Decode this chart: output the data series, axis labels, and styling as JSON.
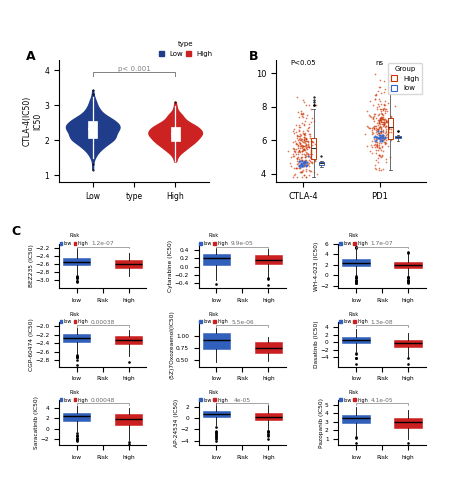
{
  "panel_A": {
    "legend_title": "type",
    "ylabel": "CTLA-4(IC50)\nIC50",
    "pvalue": "p< 0.001",
    "blue_color": "#1f3d8a",
    "red_color": "#cc2222",
    "ylim": [
      0.8,
      4.3
    ]
  },
  "panel_B": {
    "pvalue_ctla4": "P<0.05",
    "pvalue_pd1": "ns",
    "legend_title": "Group",
    "red_color": "#cc3300",
    "blue_color": "#3366cc",
    "ylim": [
      3.5,
      10.8
    ],
    "yticks": [
      4,
      6,
      8,
      10
    ]
  },
  "panel_C": {
    "boxes": [
      {
        "drug": "BEZ235 (IC50)",
        "pvalue": "1.2e-07",
        "low": {
          "median": -2.55,
          "q1": -2.65,
          "q3": -2.47,
          "wl": -3.1,
          "wh": -2.25,
          "out": [
            -3.3
          ]
        },
        "high": {
          "median": -2.6,
          "q1": -2.72,
          "q3": -2.52,
          "wl": -2.8,
          "wh": -2.35,
          "out": [
            -2.9
          ]
        },
        "ylim": [
          -3.2,
          -2.1
        ],
        "yticks": [
          -3.0,
          -2.8,
          -2.6,
          -2.4,
          -2.2
        ]
      },
      {
        "drug": "Cytarabine (IC50)",
        "pvalue": "9.9e-05",
        "low": {
          "median": 0.2,
          "q1": 0.08,
          "q3": 0.3,
          "wl": -0.32,
          "wh": 0.45,
          "out": [
            -0.42
          ]
        },
        "high": {
          "median": 0.17,
          "q1": 0.05,
          "q3": 0.25,
          "wl": -0.35,
          "wh": 0.38,
          "out": [
            -0.43
          ]
        },
        "ylim": [
          -0.52,
          0.55
        ],
        "yticks": [
          -0.4,
          -0.2,
          0.0,
          0.2,
          0.4
        ]
      },
      {
        "drug": "WH-4-023 (IC50)",
        "pvalue": "1.7e-07",
        "low": {
          "median": 2.4,
          "q1": 2.0,
          "q3": 2.9,
          "wl": -1.8,
          "wh": 5.2,
          "out": [
            -0.2,
            0.2
          ]
        },
        "high": {
          "median": 1.9,
          "q1": 1.4,
          "q3": 2.5,
          "wl": -1.5,
          "wh": 4.5,
          "out": []
        },
        "ylim": [
          -2.5,
          6.0
        ],
        "yticks": [
          -2,
          0,
          2,
          4,
          6
        ]
      },
      {
        "drug": "CGP-60474 (IC50)",
        "pvalue": "0.00038",
        "low": {
          "median": -2.28,
          "q1": -2.38,
          "q3": -2.18,
          "wl": -2.8,
          "wh": -2.02,
          "out": [
            -2.9
          ]
        },
        "high": {
          "median": -2.33,
          "q1": -2.45,
          "q3": -2.25,
          "wl": -2.75,
          "wh": -2.12,
          "out": [
            -2.85
          ]
        },
        "ylim": [
          -2.95,
          -1.9
        ],
        "yticks": [
          -2.8,
          -2.6,
          -2.4,
          -2.2,
          -2.0
        ]
      },
      {
        "drug": "(5Z)7Oxozeaenol(IC50)",
        "pvalue": "5.5e-06",
        "low": {
          "median": 0.92,
          "q1": 0.78,
          "q3": 1.05,
          "wl": 0.5,
          "wh": 1.18,
          "out": [
            0.45
          ]
        },
        "high": {
          "median": 0.75,
          "q1": 0.65,
          "q3": 0.88,
          "wl": 0.48,
          "wh": 1.0,
          "out": [
            0.46
          ]
        },
        "ylim": [
          0.35,
          1.3
        ],
        "yticks": [
          0.5,
          0.75,
          1.0
        ]
      },
      {
        "drug": "Dasatinib (IC50)",
        "pvalue": "1.3e-08",
        "low": {
          "median": 0.6,
          "q1": -0.2,
          "q3": 1.3,
          "wl": -5.0,
          "wh": 3.5,
          "out": [
            -5.8
          ]
        },
        "high": {
          "median": -0.1,
          "q1": -1.0,
          "q3": 0.7,
          "wl": -5.0,
          "wh": 3.0,
          "out": [
            -5.8
          ]
        },
        "ylim": [
          -6.5,
          5.5
        ],
        "yticks": [
          -4,
          -2,
          0,
          2,
          4
        ]
      },
      {
        "drug": "Saracatinib (IC50)",
        "pvalue": "0.00048",
        "low": {
          "median": 2.5,
          "q1": 1.8,
          "q3": 3.2,
          "wl": -2.2,
          "wh": 4.5,
          "out": [
            -2.5
          ]
        },
        "high": {
          "median": 1.9,
          "q1": 1.2,
          "q3": 2.7,
          "wl": -2.8,
          "wh": 4.0,
          "out": [
            -3.0
          ]
        },
        "ylim": [
          -3.2,
          5.5
        ],
        "yticks": [
          -2,
          0,
          2,
          4
        ]
      },
      {
        "drug": "AP-24534 (IC50)",
        "pvalue": "4e-05",
        "low": {
          "median": 0.7,
          "q1": 0.1,
          "q3": 1.1,
          "wl": -3.8,
          "wh": 2.5,
          "out": [
            -4.0,
            2.7
          ]
        },
        "high": {
          "median": 0.25,
          "q1": -0.25,
          "q3": 0.8,
          "wl": -3.5,
          "wh": 2.3,
          "out": [
            -3.8
          ]
        },
        "ylim": [
          -4.8,
          3.2
        ],
        "yticks": [
          -4,
          -2,
          0,
          2
        ]
      },
      {
        "drug": "Pazopanib (IC50)",
        "pvalue": "4.1e-05",
        "low": {
          "median": 3.4,
          "q1": 2.9,
          "q3": 3.9,
          "wl": 0.8,
          "wh": 4.8,
          "out": [
            0.5
          ]
        },
        "high": {
          "median": 3.0,
          "q1": 2.4,
          "q3": 3.5,
          "wl": 1.0,
          "wh": 4.5,
          "out": [
            0.5
          ]
        },
        "ylim": [
          0.3,
          5.5
        ],
        "yticks": [
          1,
          2,
          3,
          4,
          5
        ]
      }
    ]
  }
}
